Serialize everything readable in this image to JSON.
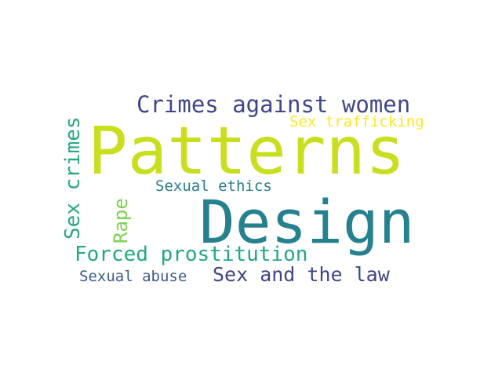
{
  "word_cloud": {
    "words": [
      {
        "text": "Patterns",
        "color": "#c8de1e"
      },
      {
        "text": "Design",
        "color": "#26818e"
      },
      {
        "text": "Crimes against women",
        "color": "#3f4788"
      },
      {
        "text": "Sex trafficking",
        "color": "#fde725"
      },
      {
        "text": "Sex crimes",
        "color": "#2aa87a"
      },
      {
        "text": "Sexual ethics",
        "color": "#297b8e"
      },
      {
        "text": "Rape",
        "color": "#7ad151"
      },
      {
        "text": "Forced prostitution",
        "color": "#22a884"
      },
      {
        "text": "Sex and the law",
        "color": "#414487"
      },
      {
        "text": "Sexual abuse",
        "color": "#3b5c8c"
      }
    ]
  }
}
